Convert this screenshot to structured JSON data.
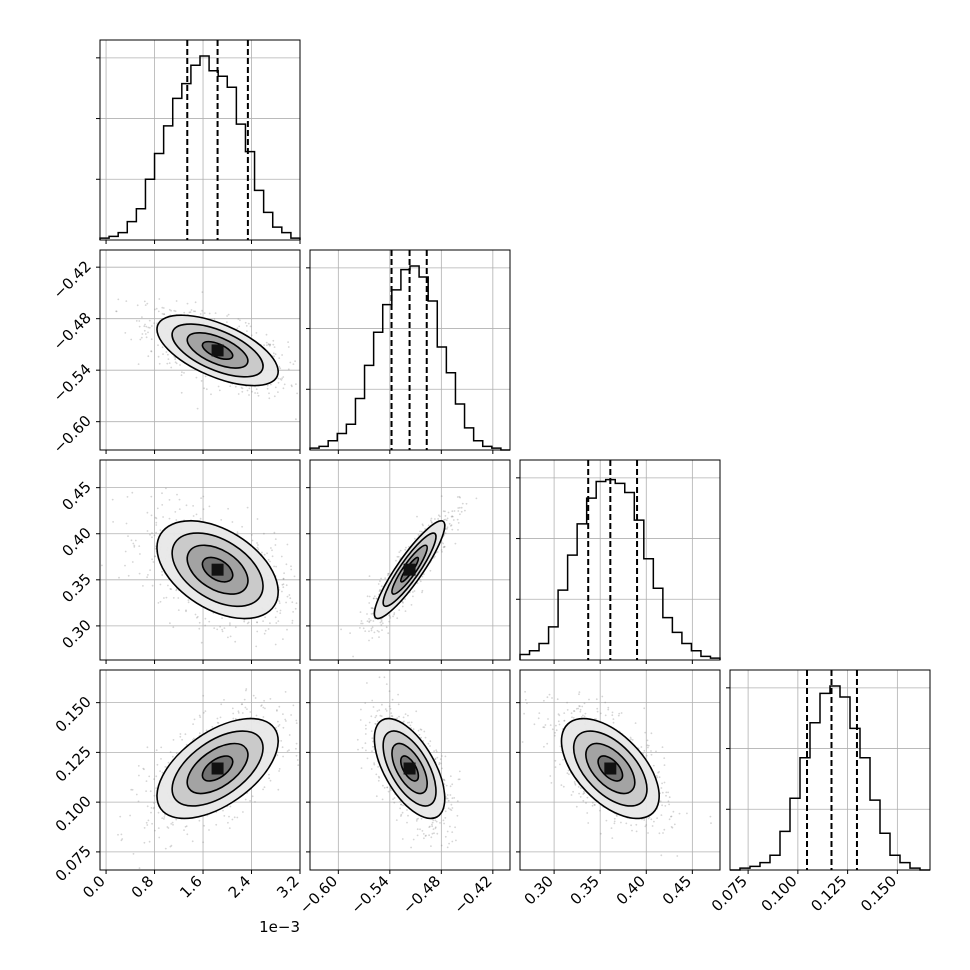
{
  "chart_data": {
    "type": "corner",
    "parameters": [
      {
        "median": 0.00184,
        "q16": 0.00134,
        "q84": 0.00234,
        "range": [
          -0.0001,
          0.0032
        ],
        "ticks": [
          0.0,
          0.0008,
          0.0016,
          0.0024,
          0.0032
        ],
        "tick_labels": [
          "0.0",
          "0.8",
          "1.6",
          "2.4",
          "3.2"
        ],
        "offset_label": "1e−3",
        "hist": [
          0.01,
          0.02,
          0.04,
          0.1,
          0.17,
          0.33,
          0.47,
          0.62,
          0.77,
          0.85,
          0.95,
          1.0,
          0.92,
          0.89,
          0.83,
          0.63,
          0.48,
          0.27,
          0.15,
          0.07,
          0.04,
          0.01
        ]
      },
      {
        "median": -0.517,
        "q16": -0.538,
        "q84": -0.497,
        "range": [
          -0.633,
          -0.4
        ],
        "ticks": [
          -0.6,
          -0.54,
          -0.48,
          -0.42
        ],
        "tick_labels": [
          "−0.60",
          "−0.54",
          "−0.48",
          "−0.42"
        ],
        "hist": [
          0.01,
          0.02,
          0.05,
          0.09,
          0.14,
          0.28,
          0.46,
          0.64,
          0.79,
          0.87,
          0.98,
          1.0,
          0.94,
          0.81,
          0.56,
          0.42,
          0.25,
          0.12,
          0.05,
          0.02,
          0.01,
          0.0
        ]
      },
      {
        "median": 0.361,
        "q16": 0.337,
        "q84": 0.39,
        "range": [
          0.263,
          0.48
        ],
        "ticks": [
          0.3,
          0.35,
          0.4,
          0.45
        ],
        "tick_labels": [
          "0.30",
          "0.35",
          "0.40",
          "0.45"
        ],
        "hist": [
          0.03,
          0.05,
          0.09,
          0.18,
          0.38,
          0.57,
          0.74,
          0.88,
          0.97,
          0.98,
          0.96,
          0.91,
          0.76,
          0.55,
          0.39,
          0.23,
          0.15,
          0.09,
          0.05,
          0.02,
          0.01
        ]
      },
      {
        "median": 0.1169,
        "q16": 0.1046,
        "q84": 0.1297,
        "range": [
          0.0659,
          0.1664
        ],
        "ticks": [
          0.075,
          0.1,
          0.125,
          0.15
        ],
        "tick_labels": [
          "0.075",
          "0.100",
          "0.125",
          "0.150"
        ],
        "hist": [
          0.0,
          0.01,
          0.02,
          0.04,
          0.08,
          0.21,
          0.39,
          0.61,
          0.8,
          0.96,
          1.0,
          0.94,
          0.77,
          0.61,
          0.38,
          0.2,
          0.08,
          0.04,
          0.01,
          0.0
        ]
      }
    ],
    "correlations": [
      [
        null,
        -0.6,
        -0.45,
        0.55
      ],
      [
        -0.6,
        null,
        0.9,
        -0.6
      ],
      [
        -0.45,
        0.9,
        null,
        -0.55
      ],
      [
        0.55,
        -0.6,
        -0.55,
        null
      ]
    ],
    "contour_levels": [
      0.5,
      1.0,
      1.5,
      2.0
    ],
    "grid": true,
    "quantiles": [
      0.16,
      0.5,
      0.84
    ]
  }
}
